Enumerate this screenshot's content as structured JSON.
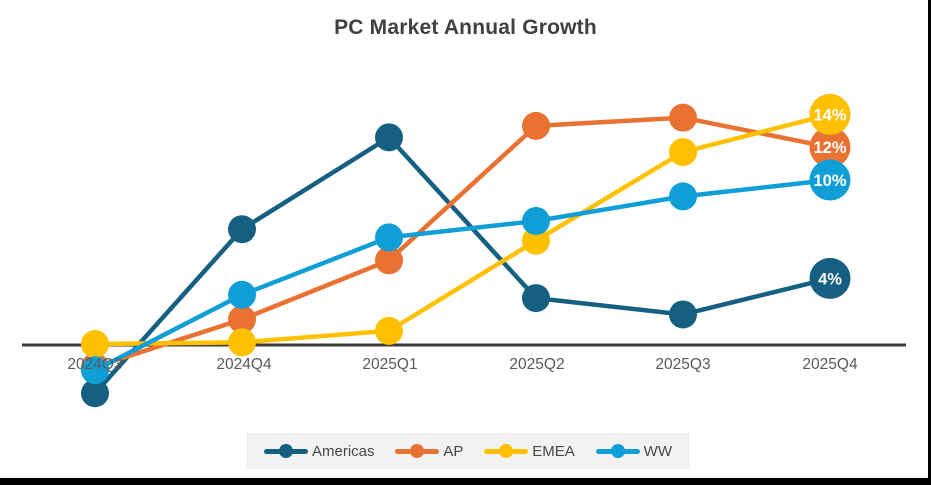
{
  "chart_data": {
    "type": "line",
    "title": "PC Market Annual Growth",
    "categories": [
      "2024Q3",
      "2024Q4",
      "2025Q1",
      "2025Q2",
      "2025Q3",
      "2025Q4"
    ],
    "series": [
      {
        "name": "Americas",
        "color": "#156082",
        "values": [
          -3.0,
          7.0,
          12.6,
          2.8,
          1.8,
          4.0
        ],
        "end_label": "4%"
      },
      {
        "name": "AP",
        "color": "#E97132",
        "values": [
          -1.4,
          1.5,
          5.1,
          13.3,
          13.8,
          12.0
        ],
        "end_label": "12%"
      },
      {
        "name": "EMEA",
        "color": "#FFC000",
        "values": [
          0.0,
          0.1,
          0.8,
          6.3,
          11.7,
          14.0
        ],
        "end_label": "14%"
      },
      {
        "name": "WW",
        "color": "#0F9ED5",
        "values": [
          -1.6,
          3.0,
          6.5,
          7.5,
          9.0,
          10.0
        ],
        "end_label": "10%"
      }
    ],
    "ylabel": "",
    "xlabel": "",
    "ylim": [
      -4,
      16
    ],
    "grid": false,
    "data_labels": "last point only, shown as % inside enlarged end marker",
    "legend_position": "bottom",
    "legend_background": "#F2F2F2",
    "axis_line_color": "#3B3B3B",
    "tick_label_color": "#595959",
    "title_color": "#404040",
    "data_label_text_color": "#FFFFFF",
    "frame_border_color": "#000000"
  }
}
